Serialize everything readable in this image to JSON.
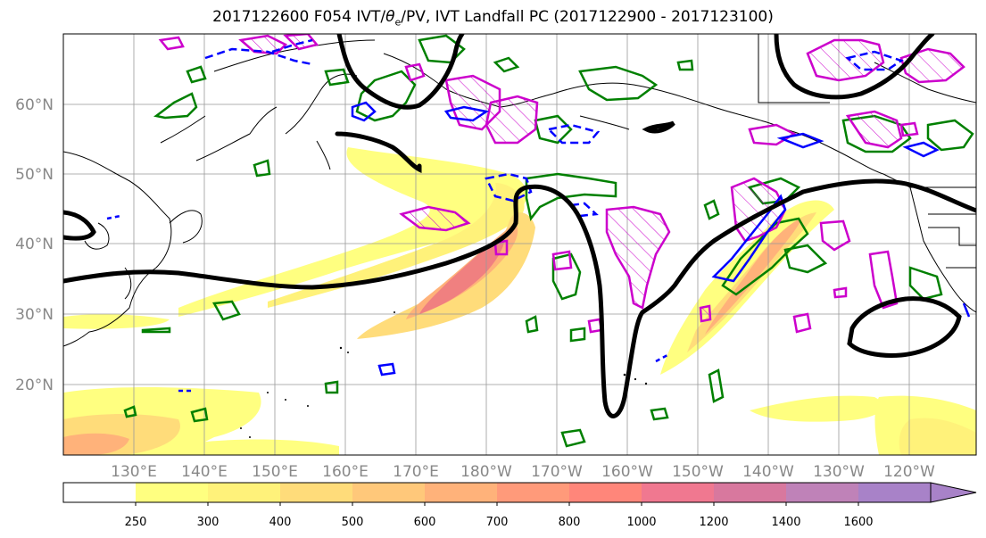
{
  "title": "2017122600 F054 IVT/θe/PV, IVT Landfall PC (2017122900 - 2017123100)",
  "title_parts": {
    "prefix": "2017122600 F054 IVT/",
    "theta": "θ",
    "sub": "e",
    "suffix": "/PV, IVT Landfall PC (2017122900 - 2017123100)"
  },
  "lat_labels": [
    "60°N",
    "50°N",
    "40°N",
    "30°N",
    "20°N"
  ],
  "lon_labels": [
    "130°E",
    "140°E",
    "150°E",
    "160°E",
    "170°E",
    "180°W",
    "170°W",
    "160°W",
    "150°W",
    "140°W",
    "130°W",
    "120°W"
  ],
  "colorbar": {
    "labels": [
      "250",
      "300",
      "400",
      "500",
      "600",
      "700",
      "800",
      "1000",
      "1200",
      "1400",
      "1600"
    ],
    "colors": [
      "#ffffff",
      "#ffff80",
      "#fff27a",
      "#ffdc7a",
      "#ffc87a",
      "#ffb27a",
      "#ff9a7a",
      "#ff867a",
      "#f07890",
      "#d8789e",
      "#bf82b8",
      "#a882c8"
    ]
  },
  "colors": {
    "theta_e": "#000000",
    "pv": "#008000",
    "ivt_pos": "#cc00cc",
    "ivt_neg": "#0000ff",
    "grid": "#999999"
  }
}
